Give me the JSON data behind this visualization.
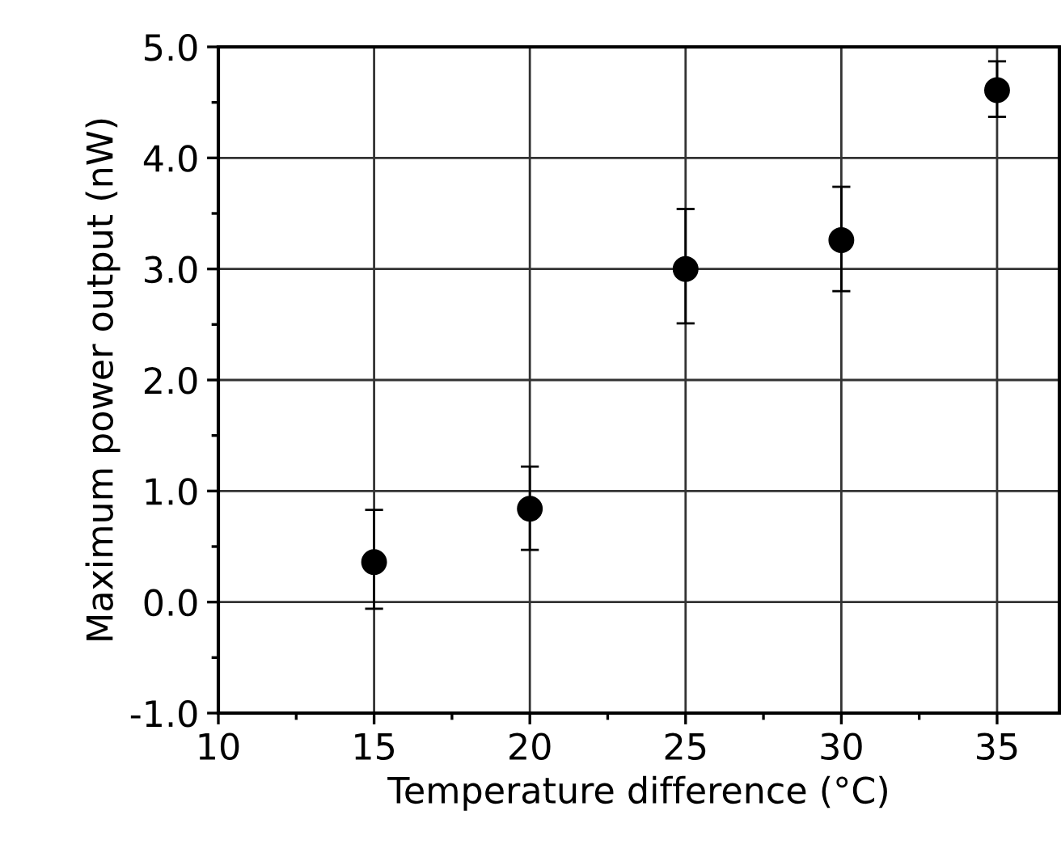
{
  "chart_data": {
    "type": "scatter",
    "xlabel": "Temperature difference (°C)",
    "ylabel": "Maximum power output (nW)",
    "x": [
      15,
      20,
      25,
      30,
      35
    ],
    "values": [
      0.36,
      0.84,
      3.0,
      3.26,
      4.61
    ],
    "errors": [
      [
        -0.06,
        0.83
      ],
      [
        0.47,
        1.22
      ],
      [
        2.51,
        3.54
      ],
      [
        2.8,
        3.74
      ],
      [
        4.37,
        4.87
      ]
    ],
    "color": "#000000",
    "marker": "circle",
    "grid": true,
    "xlim": [
      10,
      37
    ],
    "xticks": [
      10,
      15,
      20,
      25,
      30,
      35
    ],
    "ylim": [
      -1.0,
      5.0
    ],
    "yticks": [
      {
        "value": -1,
        "label": "-1.0"
      },
      {
        "value": 0,
        "label": "0.0"
      },
      {
        "value": 1,
        "label": "1.0"
      },
      {
        "value": 2,
        "label": "2.0"
      },
      {
        "value": 3,
        "label": "3.0"
      },
      {
        "value": 4,
        "label": "4.0"
      },
      {
        "value": 5,
        "label": "5.0"
      }
    ]
  }
}
